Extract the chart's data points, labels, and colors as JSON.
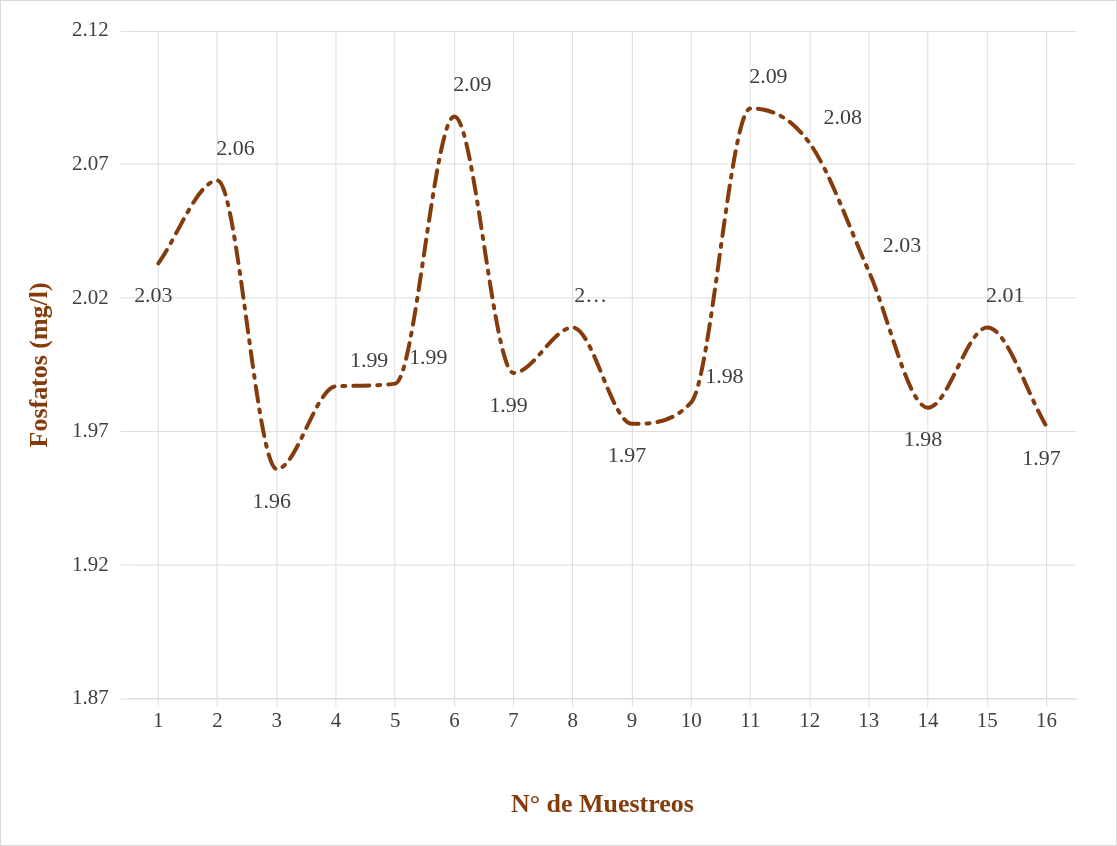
{
  "chart_data": {
    "type": "line",
    "xlabel": "N° de Muestreos",
    "ylabel": "Fosfatos (mg/l)",
    "categories": [
      "1",
      "2",
      "3",
      "4",
      "5",
      "6",
      "7",
      "8",
      "9",
      "10",
      "11",
      "12",
      "13",
      "14",
      "15",
      "16"
    ],
    "series": [
      {
        "color": "#843c0c",
        "values": [
          2.033,
          2.064,
          1.956,
          1.987,
          1.988,
          2.088,
          1.992,
          2.009,
          1.973,
          1.981,
          2.091,
          2.078,
          2.03,
          1.979,
          2.009,
          1.972
        ],
        "value_labels": [
          "2.03",
          "2.06",
          "1.96",
          "1.99",
          "1.99",
          "2.09",
          "1.99",
          "2…",
          "1.97",
          "1.98",
          "2.09",
          "2.08",
          "2.03",
          "1.98",
          "2.01",
          "1.97"
        ]
      }
    ],
    "ylim": [
      1.87,
      2.12
    ],
    "yticks": [
      1.87,
      1.92,
      1.97,
      2.02,
      2.07,
      2.12
    ],
    "grid": true,
    "legend": false,
    "marker": "none",
    "line_style": "dashed"
  }
}
